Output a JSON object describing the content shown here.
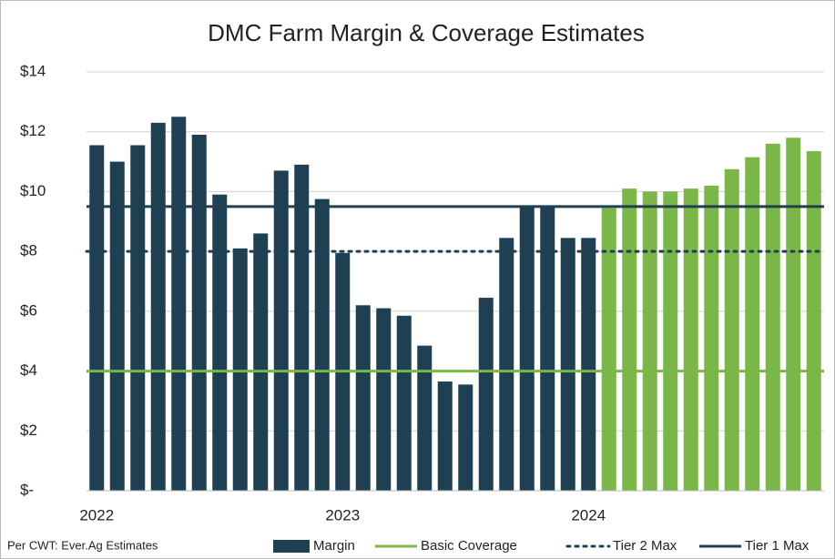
{
  "chart_data": {
    "type": "bar",
    "title": "DMC Farm Margin & Coverage Estimates",
    "note": "Per CWT: Ever.Ag Estimates",
    "categories": [
      "2022",
      null,
      null,
      null,
      null,
      null,
      null,
      null,
      null,
      null,
      null,
      null,
      "2023",
      null,
      null,
      null,
      null,
      null,
      null,
      null,
      null,
      null,
      null,
      null,
      "2024",
      null,
      null,
      null,
      null,
      null,
      null,
      null,
      null,
      null,
      null,
      null
    ],
    "series": [
      {
        "name": "Margin",
        "color": "#1f3f52",
        "values": [
          11.55,
          11.0,
          11.55,
          12.3,
          12.5,
          11.9,
          9.9,
          8.1,
          8.6,
          10.7,
          10.9,
          9.75,
          7.95,
          6.2,
          6.1,
          5.85,
          4.85,
          3.65,
          3.55,
          6.45,
          8.45,
          9.5,
          9.5,
          8.45,
          8.45,
          9.45,
          10.1,
          10.0,
          10.0,
          10.1,
          10.2,
          10.75,
          11.15,
          11.6,
          11.8,
          11.35
        ],
        "colors": [
          "#1f3f52",
          "#1f3f52",
          "#1f3f52",
          "#1f3f52",
          "#1f3f52",
          "#1f3f52",
          "#1f3f52",
          "#1f3f52",
          "#1f3f52",
          "#1f3f52",
          "#1f3f52",
          "#1f3f52",
          "#1f3f52",
          "#1f3f52",
          "#1f3f52",
          "#1f3f52",
          "#1f3f52",
          "#1f3f52",
          "#1f3f52",
          "#1f3f52",
          "#1f3f52",
          "#1f3f52",
          "#1f3f52",
          "#1f3f52",
          "#1f3f52",
          "#7ab648",
          "#7ab648",
          "#7ab648",
          "#7ab648",
          "#7ab648",
          "#7ab648",
          "#7ab648",
          "#7ab648",
          "#7ab648",
          "#7ab648",
          "#7ab648"
        ]
      }
    ],
    "reference_lines": [
      {
        "name": "Basic Coverage",
        "value": 4,
        "color": "#7ab648",
        "style": "solid"
      },
      {
        "name": "Tier 2 Max",
        "value": 8,
        "color": "#1f3f52",
        "style": "dotted"
      },
      {
        "name": "Tier 1 Max",
        "value": 9.5,
        "color": "#1f3f52",
        "style": "solid"
      }
    ],
    "ylim": [
      0,
      14
    ],
    "yticks": [
      {
        "value": 0,
        "label": "$-"
      },
      {
        "value": 2,
        "label": "$2"
      },
      {
        "value": 4,
        "label": "$4"
      },
      {
        "value": 6,
        "label": "$6"
      },
      {
        "value": 8,
        "label": "$8"
      },
      {
        "value": 10,
        "label": "$10"
      },
      {
        "value": 12,
        "label": "$12"
      },
      {
        "value": 14,
        "label": "$14"
      }
    ],
    "grid": true
  }
}
